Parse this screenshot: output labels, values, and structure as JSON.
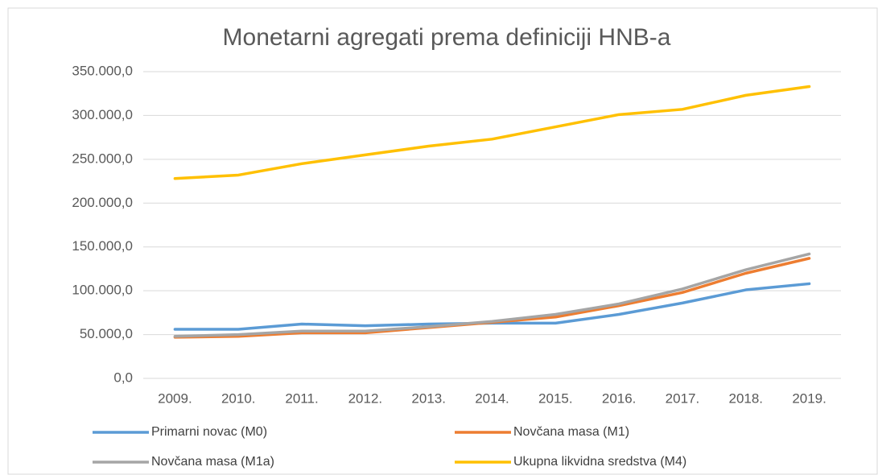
{
  "chart_data": {
    "type": "line",
    "title": "Monetarni agregati prema definiciji HNB-a",
    "categories": [
      "2009.",
      "2010.",
      "2011.",
      "2012.",
      "2013.",
      "2014.",
      "2015.",
      "2016.",
      "2017.",
      "2018.",
      "2019."
    ],
    "series": [
      {
        "name": "Primarni novac (M0)",
        "color": "#5b9bd5",
        "values": [
          56000,
          56000,
          62000,
          60000,
          62000,
          63000,
          63000,
          73000,
          86000,
          101000,
          108000
        ]
      },
      {
        "name": "Novčana masa (M1)",
        "color": "#ed7d31",
        "values": [
          47000,
          48000,
          52000,
          52000,
          58000,
          64000,
          70000,
          83000,
          98000,
          120000,
          137000
        ]
      },
      {
        "name": "Novčana masa (M1a)",
        "color": "#a5a5a5",
        "values": [
          48000,
          50000,
          54000,
          54000,
          59000,
          65000,
          73000,
          85000,
          102000,
          124000,
          142000
        ]
      },
      {
        "name": "Ukupna likvidna sredstva (M4)",
        "color": "#ffc000",
        "values": [
          228000,
          232000,
          245000,
          255000,
          265000,
          273000,
          287000,
          301000,
          307000,
          323000,
          333000
        ]
      }
    ],
    "ylim": [
      0,
      350000
    ],
    "yticks": [
      {
        "value": 0,
        "label": "0,0"
      },
      {
        "value": 50000,
        "label": "50.000,0"
      },
      {
        "value": 100000,
        "label": "100.000,0"
      },
      {
        "value": 150000,
        "label": "150.000,0"
      },
      {
        "value": 200000,
        "label": "200.000,0"
      },
      {
        "value": 250000,
        "label": "250.000,0"
      },
      {
        "value": 300000,
        "label": "300.000,0"
      },
      {
        "value": 350000,
        "label": "350.000,0"
      }
    ],
    "grid": true
  }
}
